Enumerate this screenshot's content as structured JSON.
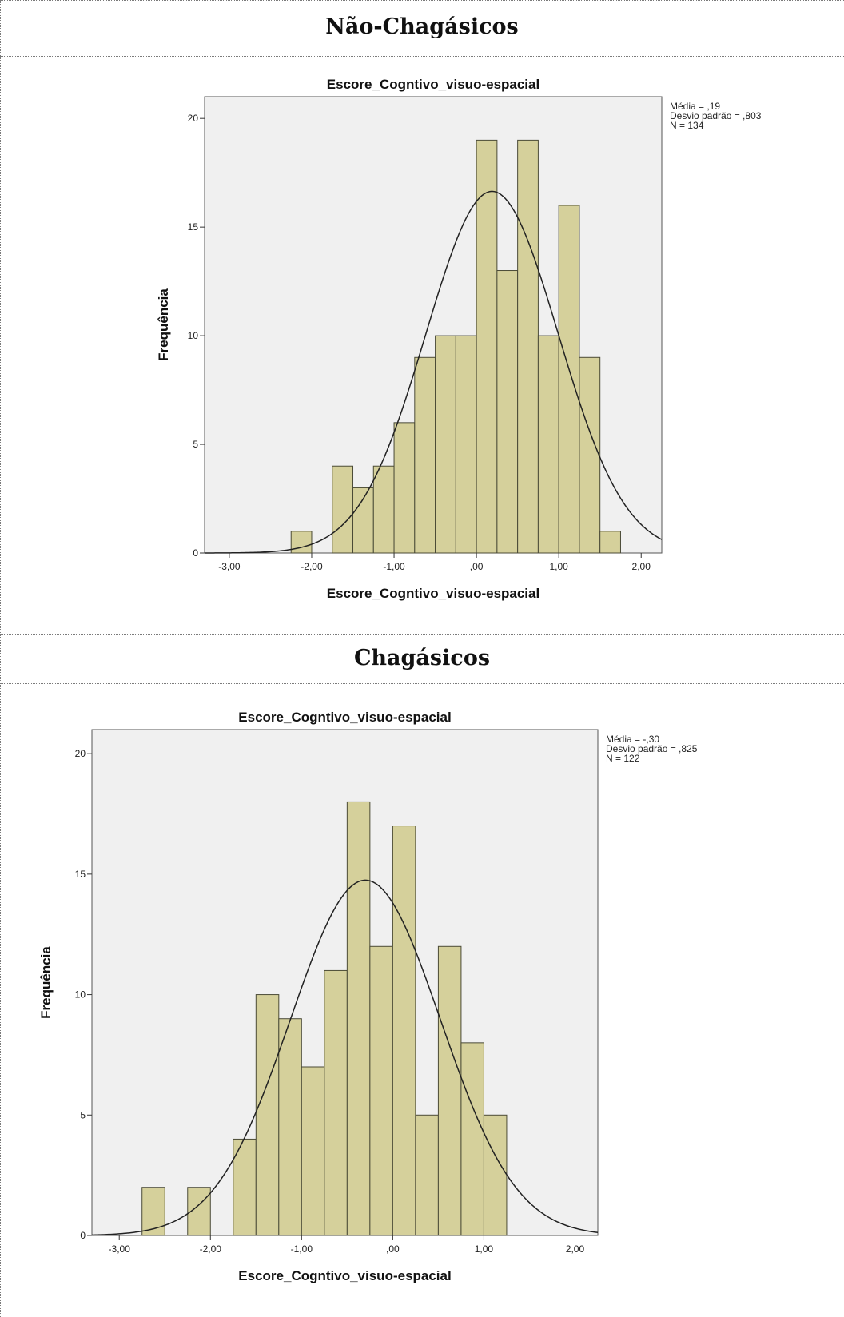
{
  "sections": [
    {
      "label": "Não-Chagásicos"
    },
    {
      "label": "Chagásicos"
    }
  ],
  "chart_data": [
    {
      "type": "bar",
      "title": "Escore_Cogntivo_visuo-espacial",
      "xlabel": "Escore_Cogntivo_visuo-espacial",
      "ylabel": "Frequência",
      "xlim": [
        -3.3,
        2.25
      ],
      "ylim": [
        0,
        21
      ],
      "xticks": [
        -3,
        -2,
        -1,
        0,
        1,
        2
      ],
      "xtick_labels": [
        "-3,00",
        "-2,00",
        "-1,00",
        ",00",
        "1,00",
        "2,00"
      ],
      "yticks": [
        0,
        5,
        10,
        15,
        20
      ],
      "ytick_labels": [
        "0",
        "5",
        "10",
        "15",
        "20"
      ],
      "bin_width": 0.25,
      "bins": [
        {
          "x0": -2.25,
          "count": 1
        },
        {
          "x0": -1.75,
          "count": 4
        },
        {
          "x0": -1.5,
          "count": 3
        },
        {
          "x0": -1.25,
          "count": 4
        },
        {
          "x0": -1.0,
          "count": 6
        },
        {
          "x0": -0.75,
          "count": 9
        },
        {
          "x0": -0.5,
          "count": 10
        },
        {
          "x0": -0.25,
          "count": 10
        },
        {
          "x0": 0.0,
          "count": 19
        },
        {
          "x0": 0.25,
          "count": 13
        },
        {
          "x0": 0.5,
          "count": 19
        },
        {
          "x0": 0.75,
          "count": 10
        },
        {
          "x0": 1.0,
          "count": 16
        },
        {
          "x0": 1.25,
          "count": 9
        },
        {
          "x0": 1.5,
          "count": 1
        }
      ],
      "normal_curve": {
        "mean": 0.19,
        "sd": 0.803,
        "n": 134
      },
      "stats": [
        "Média = ,19",
        "Desvio padrão = ,803",
        "N = 134"
      ],
      "colors": {
        "bar_fill": "#d5d09b",
        "bar_stroke": "#4a4a36",
        "plot_bg": "#f0f0f0",
        "curve": "#222222"
      },
      "grid": false
    },
    {
      "type": "bar",
      "title": "Escore_Cogntivo_visuo-espacial",
      "xlabel": "Escore_Cogntivo_visuo-espacial",
      "ylabel": "Frequência",
      "xlim": [
        -3.3,
        2.25
      ],
      "ylim": [
        0,
        21
      ],
      "xticks": [
        -3,
        -2,
        -1,
        0,
        1,
        2
      ],
      "xtick_labels": [
        "-3,00",
        "-2,00",
        "-1,00",
        ",00",
        "1,00",
        "2,00"
      ],
      "yticks": [
        0,
        5,
        10,
        15,
        20
      ],
      "ytick_labels": [
        "0",
        "5",
        "10",
        "15",
        "20"
      ],
      "bin_width": 0.25,
      "bins": [
        {
          "x0": -2.75,
          "count": 2
        },
        {
          "x0": -2.25,
          "count": 2
        },
        {
          "x0": -1.75,
          "count": 4
        },
        {
          "x0": -1.5,
          "count": 10
        },
        {
          "x0": -1.25,
          "count": 9
        },
        {
          "x0": -1.0,
          "count": 7
        },
        {
          "x0": -0.75,
          "count": 11
        },
        {
          "x0": -0.5,
          "count": 18
        },
        {
          "x0": -0.25,
          "count": 12
        },
        {
          "x0": 0.0,
          "count": 17
        },
        {
          "x0": 0.25,
          "count": 5
        },
        {
          "x0": 0.5,
          "count": 12
        },
        {
          "x0": 0.75,
          "count": 8
        },
        {
          "x0": 1.0,
          "count": 5
        }
      ],
      "normal_curve": {
        "mean": -0.3,
        "sd": 0.825,
        "n": 122
      },
      "stats": [
        "Média = -,30",
        "Desvio padrão = ,825",
        "N = 122"
      ],
      "colors": {
        "bar_fill": "#d5d09b",
        "bar_stroke": "#4a4a36",
        "plot_bg": "#f0f0f0",
        "curve": "#222222"
      },
      "grid": false
    }
  ]
}
